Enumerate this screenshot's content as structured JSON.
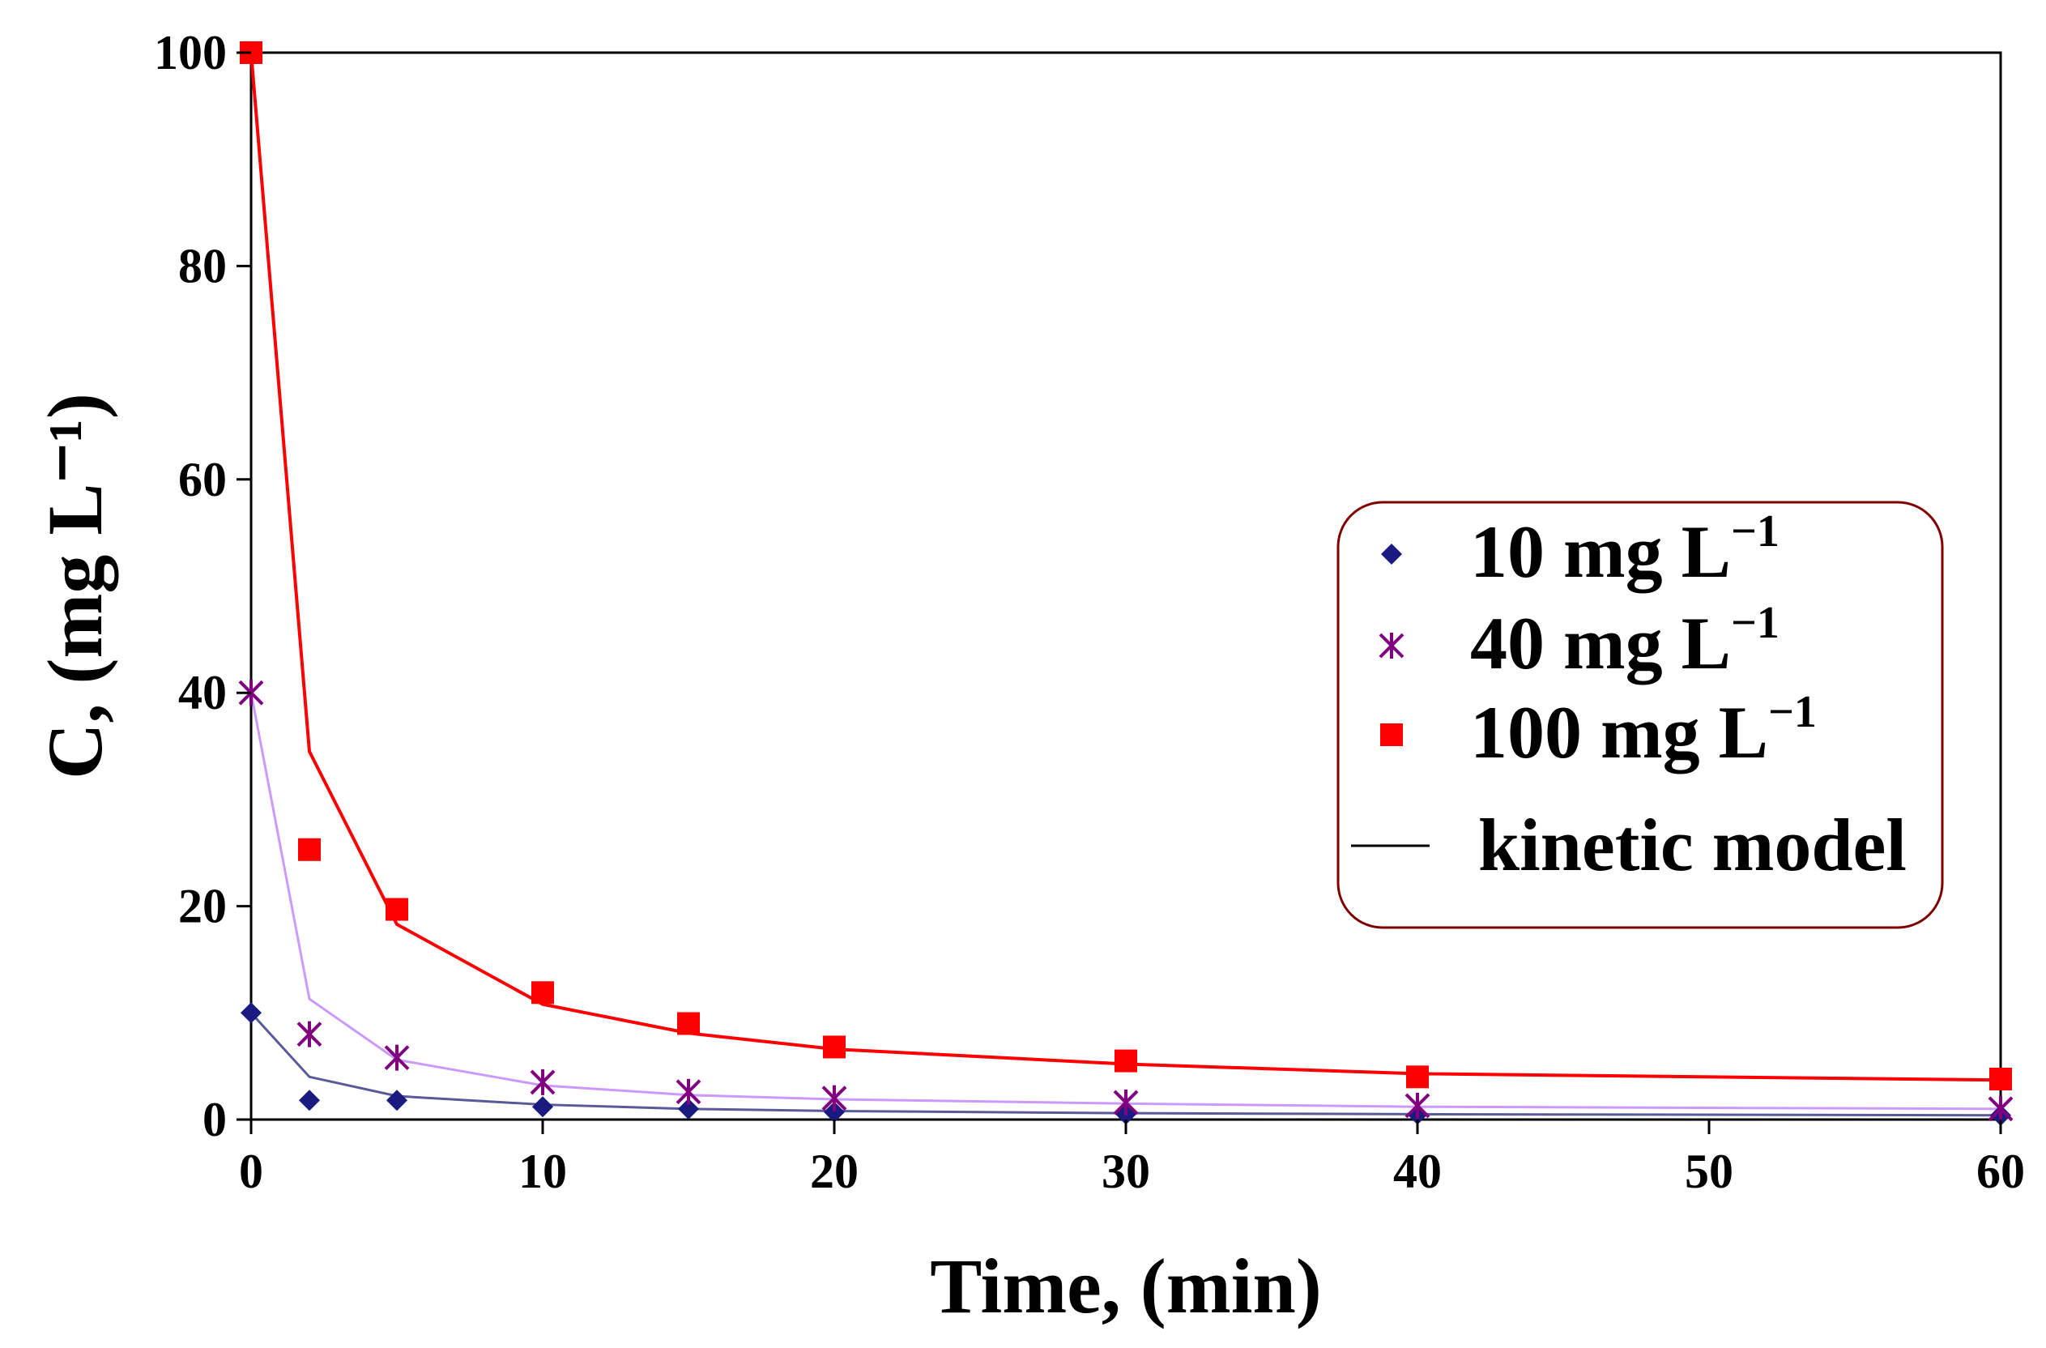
{
  "chart_data": {
    "type": "scatter",
    "title": "",
    "xlabel": "Time, (min)",
    "ylabel": "C, (mg L⁻¹)",
    "xlim": [
      0,
      60
    ],
    "ylim": [
      0,
      100
    ],
    "xticks": [
      0,
      10,
      20,
      30,
      40,
      50,
      60
    ],
    "yticks": [
      0,
      20,
      40,
      60,
      80,
      100
    ],
    "grid": false,
    "legend_position": "right",
    "colors": {
      "s10": "#1a1a80",
      "s10_line": "#5a5a9a",
      "s40": "#800080",
      "s40_line": "#cc99ff",
      "s100": "#ff0000",
      "s100_line": "#ff0000",
      "legend_border": "#800000"
    },
    "series": [
      {
        "name": "10 mg L⁻¹",
        "label_main": "10 mg L",
        "label_sup": "−1",
        "marker": "diamond",
        "x": [
          0,
          2,
          5,
          10,
          15,
          20,
          30,
          40,
          60
        ],
        "values": [
          10,
          1.8,
          1.8,
          1.2,
          1.0,
          0.7,
          0.5,
          0.5,
          0.4
        ],
        "model_x": [
          0,
          2,
          5,
          10,
          15,
          20,
          30,
          40,
          60
        ],
        "model_values": [
          10,
          4.0,
          2.2,
          1.4,
          1.0,
          0.8,
          0.6,
          0.5,
          0.4
        ]
      },
      {
        "name": "40 mg L⁻¹",
        "label_main": "40 mg L",
        "label_sup": "−1",
        "marker": "star",
        "x": [
          0,
          2,
          5,
          10,
          15,
          20,
          30,
          40,
          60
        ],
        "values": [
          40,
          8.0,
          5.8,
          3.5,
          2.6,
          2.0,
          1.6,
          1.3,
          1.0
        ],
        "model_x": [
          0,
          2,
          5,
          10,
          15,
          20,
          30,
          40,
          60
        ],
        "model_values": [
          40,
          11.3,
          5.6,
          3.2,
          2.3,
          1.9,
          1.5,
          1.2,
          1.0
        ]
      },
      {
        "name": "100 mg L⁻¹",
        "label_main": "100 mg L",
        "label_sup": "−1",
        "marker": "square",
        "x": [
          0,
          2,
          5,
          10,
          15,
          20,
          30,
          40,
          60
        ],
        "values": [
          100,
          25.3,
          19.7,
          11.9,
          9.0,
          6.8,
          5.5,
          4.0,
          3.8
        ],
        "model_x": [
          0,
          2,
          5,
          10,
          15,
          20,
          30,
          40,
          60
        ],
        "model_values": [
          100,
          34.5,
          18.3,
          10.8,
          8.1,
          6.6,
          5.2,
          4.3,
          3.7
        ]
      }
    ],
    "legend_model_label": "kinetic model"
  }
}
